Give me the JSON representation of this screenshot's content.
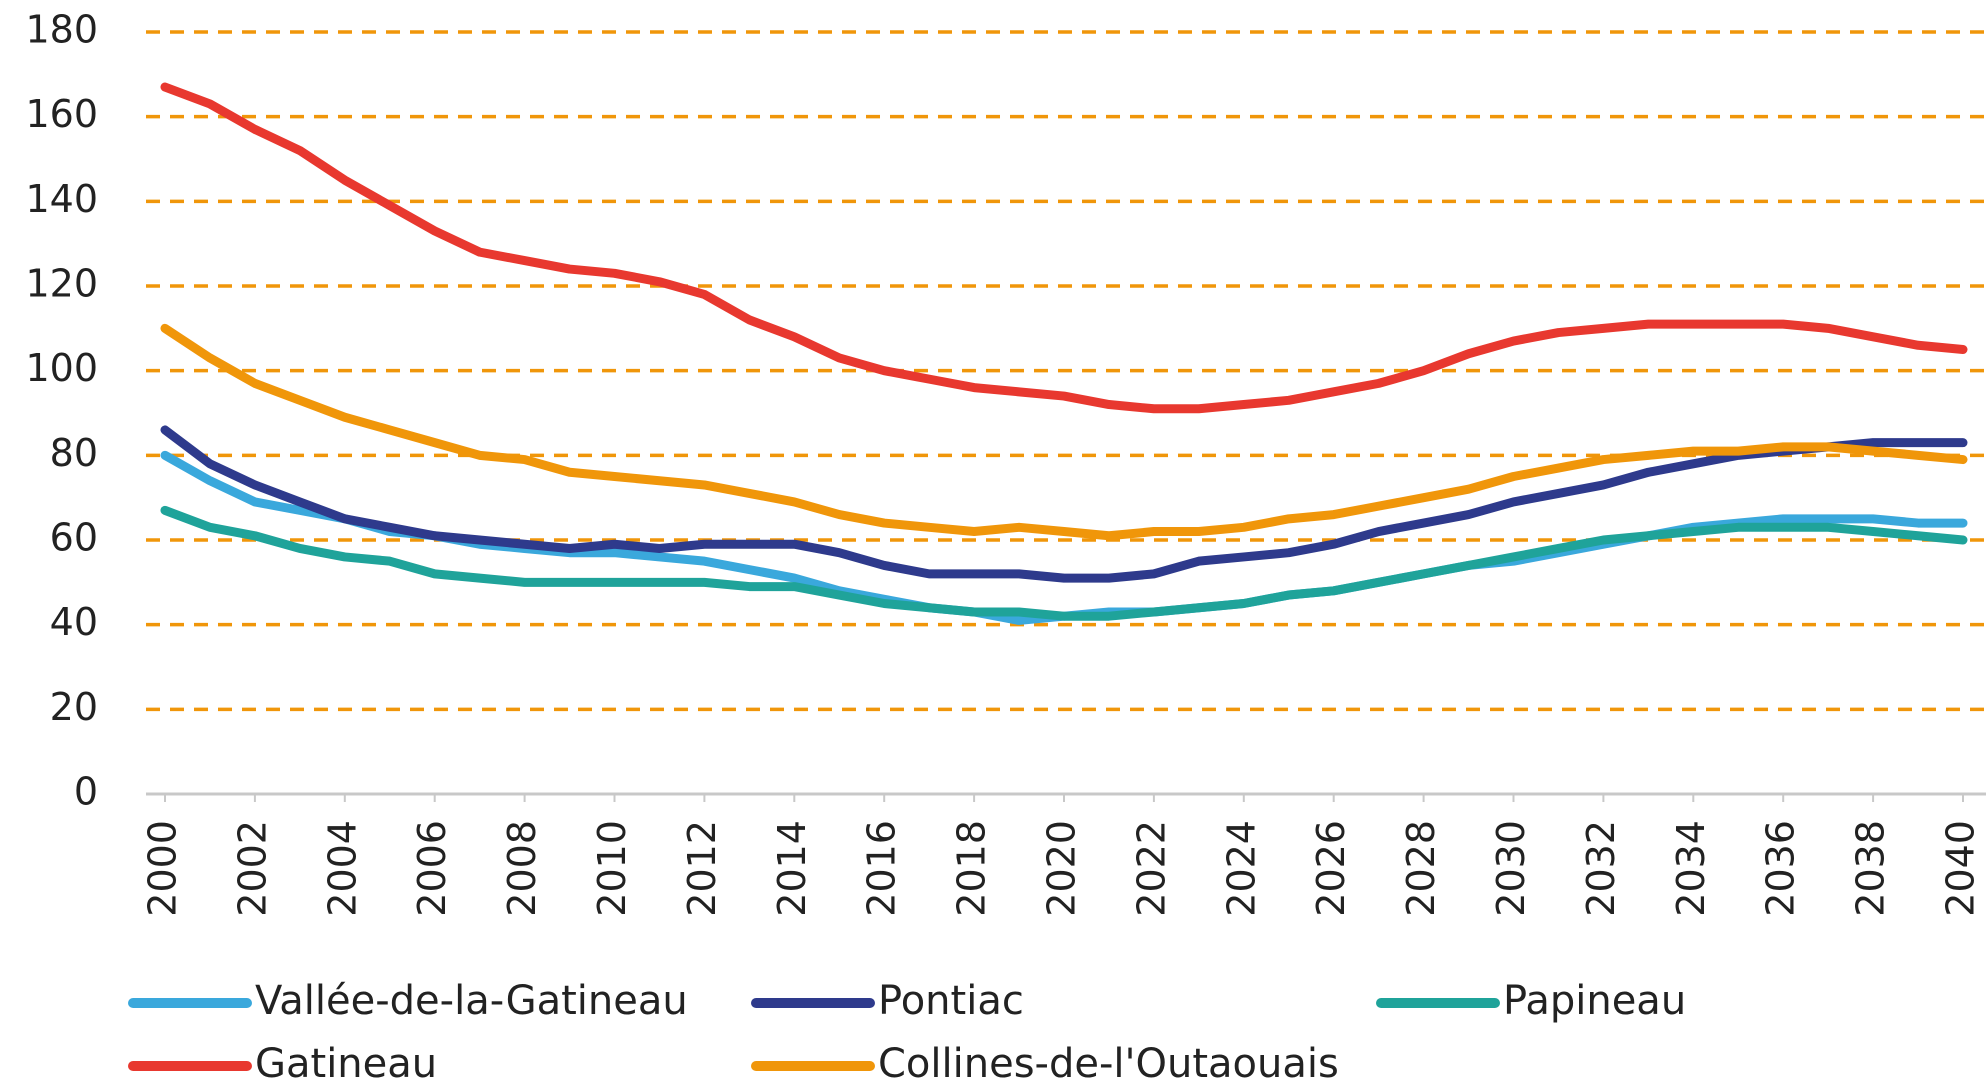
{
  "chart_data": {
    "type": "line",
    "x": [
      2000,
      2001,
      2002,
      2003,
      2004,
      2005,
      2006,
      2007,
      2008,
      2009,
      2010,
      2011,
      2012,
      2013,
      2014,
      2015,
      2016,
      2017,
      2018,
      2019,
      2020,
      2021,
      2022,
      2023,
      2024,
      2025,
      2026,
      2027,
      2028,
      2029,
      2030,
      2031,
      2032,
      2033,
      2034,
      2035,
      2036,
      2037,
      2038,
      2039,
      2040
    ],
    "xlim": [
      2000,
      2040
    ],
    "xticks": [
      2000,
      2002,
      2004,
      2006,
      2008,
      2010,
      2012,
      2014,
      2016,
      2018,
      2020,
      2022,
      2024,
      2026,
      2028,
      2030,
      2032,
      2034,
      2036,
      2038,
      2040
    ],
    "ylim": [
      0,
      180
    ],
    "yticks": [
      0,
      20,
      40,
      60,
      80,
      100,
      120,
      140,
      160,
      180
    ],
    "grid": true,
    "grid_color": "#f0960a",
    "legend": "bottom",
    "series": [
      {
        "name": "Vallée-de-la-Gatineau",
        "color": "#3aa8dc",
        "values": [
          80,
          74,
          69,
          67,
          65,
          62,
          61,
          59,
          58,
          57,
          57,
          56,
          55,
          53,
          51,
          48,
          46,
          44,
          43,
          41,
          42,
          43,
          43,
          44,
          45,
          47,
          48,
          50,
          52,
          54,
          55,
          57,
          59,
          61,
          63,
          64,
          65,
          65,
          65,
          64,
          64
        ]
      },
      {
        "name": "Pontiac",
        "color": "#2e3a8c",
        "values": [
          86,
          78,
          73,
          69,
          65,
          63,
          61,
          60,
          59,
          58,
          59,
          58,
          59,
          59,
          59,
          57,
          54,
          52,
          52,
          52,
          51,
          51,
          52,
          55,
          56,
          57,
          59,
          62,
          64,
          66,
          69,
          71,
          73,
          76,
          78,
          80,
          81,
          82,
          83,
          83,
          83
        ]
      },
      {
        "name": "Papineau",
        "color": "#1fa39a",
        "values": [
          67,
          63,
          61,
          58,
          56,
          55,
          52,
          51,
          50,
          50,
          50,
          50,
          50,
          49,
          49,
          47,
          45,
          44,
          43,
          43,
          42,
          42,
          43,
          44,
          45,
          47,
          48,
          50,
          52,
          54,
          56,
          58,
          60,
          61,
          62,
          63,
          63,
          63,
          62,
          61,
          60
        ]
      },
      {
        "name": "Gatineau",
        "color": "#e8382f",
        "values": [
          167,
          163,
          157,
          152,
          145,
          139,
          133,
          128,
          126,
          124,
          123,
          121,
          118,
          112,
          108,
          103,
          100,
          98,
          96,
          95,
          94,
          92,
          91,
          91,
          92,
          93,
          95,
          97,
          100,
          104,
          107,
          109,
          110,
          111,
          111,
          111,
          111,
          110,
          108,
          106,
          105
        ]
      },
      {
        "name": "Collines-de-l'Outaouais",
        "color": "#f0960a",
        "values": [
          110,
          103,
          97,
          93,
          89,
          86,
          83,
          80,
          79,
          76,
          75,
          74,
          73,
          71,
          69,
          66,
          64,
          63,
          62,
          63,
          62,
          61,
          62,
          62,
          63,
          65,
          66,
          68,
          70,
          72,
          75,
          77,
          79,
          80,
          81,
          81,
          82,
          82,
          81,
          80,
          79
        ]
      }
    ]
  }
}
